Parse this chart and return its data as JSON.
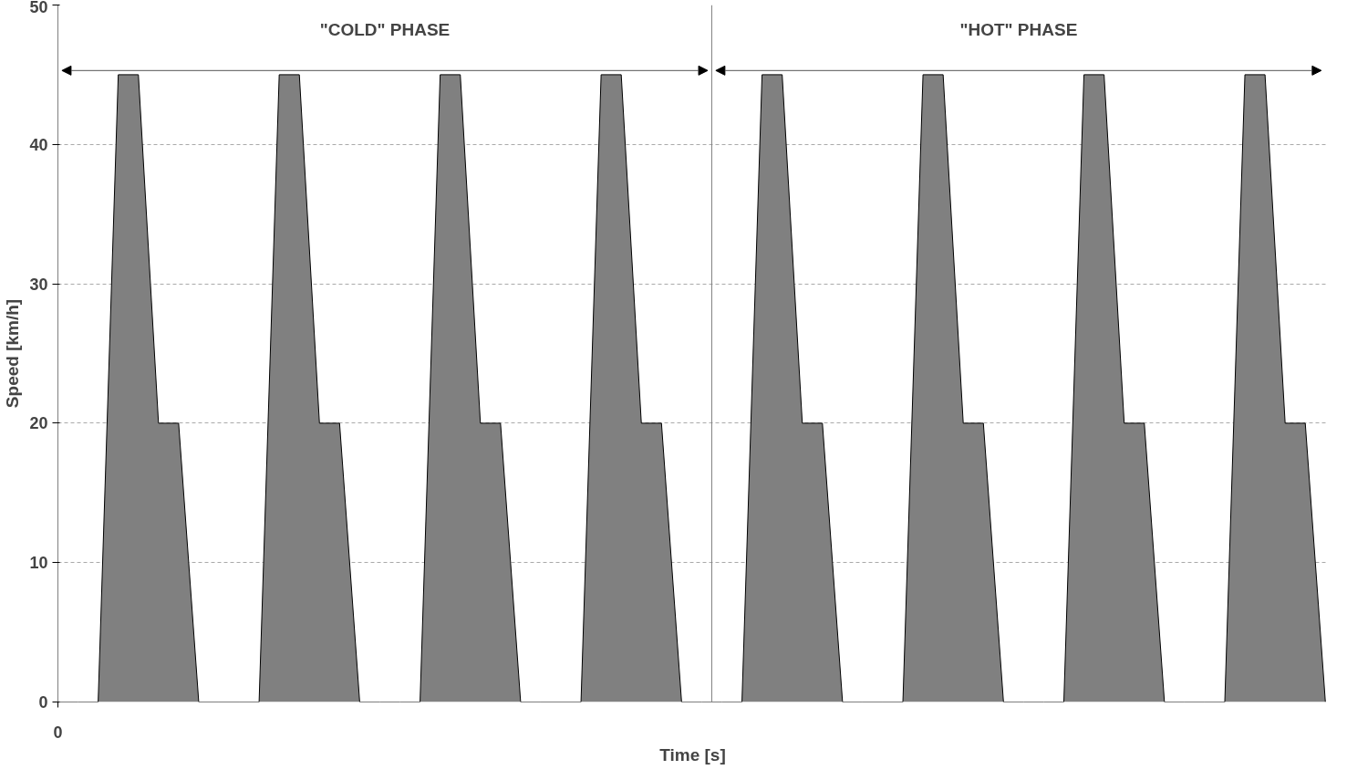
{
  "chart_data": {
    "type": "area",
    "xlabel": "Time [s]",
    "ylabel": "Speed [km/h]",
    "categories": [
      "0",
      null,
      null,
      null,
      null,
      null,
      null,
      null,
      null,
      null,
      null,
      null,
      null,
      null,
      null,
      null,
      null,
      null,
      null,
      null,
      null,
      null,
      null,
      null,
      null,
      null,
      null,
      null,
      null,
      null,
      null,
      null,
      null,
      null,
      null,
      null,
      null,
      null,
      null,
      null,
      null,
      null,
      null,
      null,
      null,
      null,
      null,
      null,
      null,
      null,
      null,
      null,
      null,
      null,
      null,
      null,
      null,
      null,
      null,
      null,
      null,
      null,
      null,
      null
    ],
    "series": [
      {
        "color": "#808080",
        "values": [
          0,
          0,
          0,
          45,
          45,
          20,
          20,
          0,
          0,
          0,
          0,
          45,
          45,
          20,
          20,
          0,
          0,
          0,
          0,
          45,
          45,
          20,
          20,
          0,
          0,
          0,
          0,
          45,
          45,
          20,
          20,
          0,
          0,
          0,
          0,
          45,
          45,
          20,
          20,
          0,
          0,
          0,
          0,
          45,
          45,
          20,
          20,
          0,
          0,
          0,
          0,
          45,
          45,
          20,
          20,
          0,
          0,
          0,
          0,
          45,
          45,
          20,
          20,
          0
        ]
      }
    ],
    "ylim": [
      0,
      50
    ],
    "yticks": [
      0,
      10,
      20,
      30,
      40,
      50
    ],
    "grid": "y",
    "annotations": [
      "\"COLD\" PHASE",
      "\"HOT\" PHASE"
    ]
  }
}
